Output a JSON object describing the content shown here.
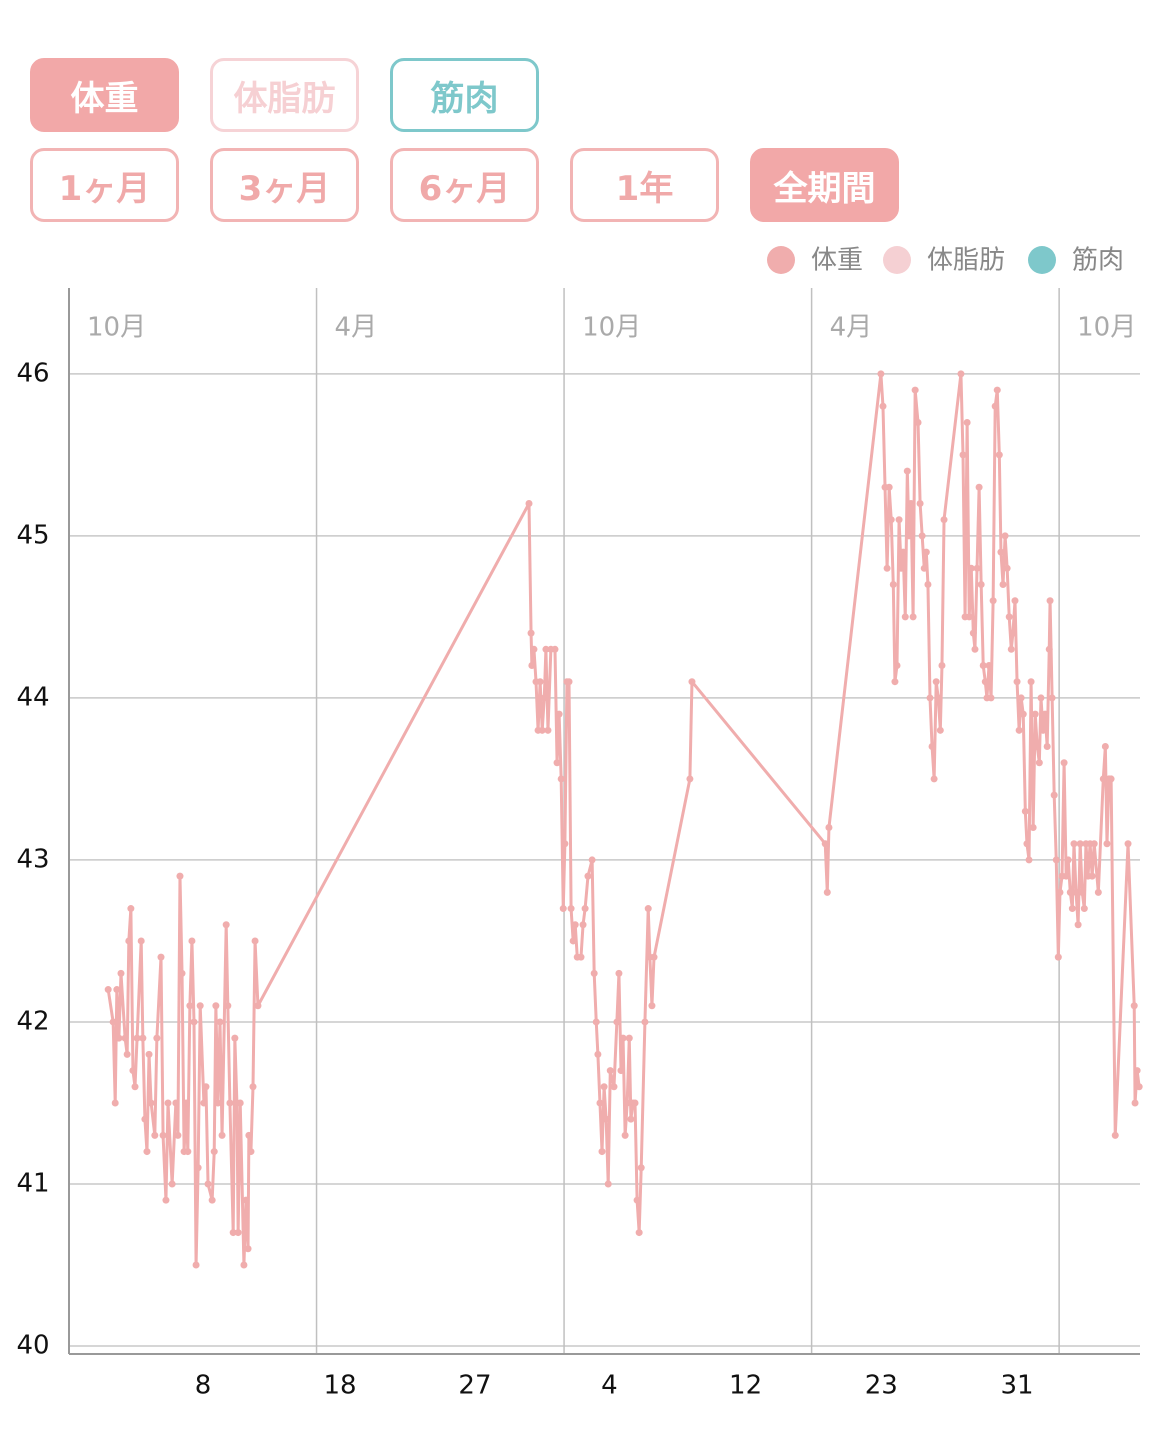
{
  "controls": {
    "metrics": [
      "体重",
      "体脂肪",
      "筋肉"
    ],
    "periods": [
      "1ヶ月",
      "3ヶ月",
      "6ヶ月",
      "1年",
      "全期間"
    ]
  },
  "chart_data": {
    "type": "line",
    "series": [
      {
        "name": "体重",
        "color": "#f0adad",
        "x": [
          0.95,
          1.07,
          1.12,
          1.16,
          1.21,
          1.26,
          1.36,
          1.41,
          1.45,
          1.5,
          1.55,
          1.6,
          1.65,
          1.75,
          1.79,
          1.84,
          1.89,
          1.94,
          1.99,
          2.08,
          2.13,
          2.23,
          2.28,
          2.35,
          2.4,
          2.5,
          2.59,
          2.64,
          2.69,
          2.74,
          2.79,
          2.84,
          2.88,
          2.93,
          2.98,
          3.03,
          3.08,
          3.13,
          3.18,
          3.27,
          3.32,
          3.37,
          3.47,
          3.52,
          3.56,
          3.61,
          3.66,
          3.71,
          3.81,
          3.85,
          3.9,
          3.98,
          4.02,
          4.07,
          4.1,
          4.15,
          4.24,
          4.29,
          4.34,
          4.36,
          4.41,
          4.46,
          4.51,
          4.58,
          11.15,
          11.2,
          11.22,
          11.27,
          11.32,
          11.37,
          11.42,
          11.47,
          11.52,
          11.56,
          11.61,
          11.68,
          11.78,
          11.83,
          11.88,
          11.93,
          11.98,
          12.02,
          12.07,
          12.12,
          12.17,
          12.22,
          12.27,
          12.32,
          12.41,
          12.46,
          12.51,
          12.58,
          12.68,
          12.73,
          12.78,
          12.82,
          12.87,
          12.92,
          12.97,
          13.02,
          13.07,
          13.12,
          13.21,
          13.28,
          13.33,
          13.38,
          13.43,
          13.48,
          13.53,
          13.58,
          13.62,
          13.67,
          13.72,
          13.77,
          13.82,
          13.87,
          13.96,
          14.04,
          14.08,
          14.13,
          14.18,
          15.05,
          15.1,
          18.33,
          18.38,
          18.42,
          19.68,
          19.73,
          19.78,
          19.83,
          19.88,
          19.93,
          19.98,
          20.02,
          20.07,
          20.12,
          20.17,
          20.22,
          20.27,
          20.32,
          20.36,
          20.41,
          20.46,
          20.51,
          20.58,
          20.63,
          20.68,
          20.73,
          20.78,
          20.82,
          20.87,
          20.92,
          20.97,
          21.02,
          21.07,
          21.12,
          21.16,
          21.21,
          21.62,
          21.67,
          21.72,
          21.77,
          21.82,
          21.87,
          21.92,
          21.96,
          22.01,
          22.06,
          22.11,
          22.16,
          22.21,
          22.25,
          22.3,
          22.35,
          22.4,
          22.45,
          22.5,
          22.55,
          22.59,
          22.64,
          22.69,
          22.74,
          22.79,
          22.84,
          22.88,
          22.93,
          22.98,
          23.03,
          23.08,
          23.13,
          23.18,
          23.22,
          23.27,
          23.32,
          23.37,
          23.42,
          23.47,
          23.52,
          23.56,
          23.61,
          23.66,
          23.71,
          23.76,
          23.78,
          23.83,
          23.88,
          23.93,
          23.98,
          24.02,
          24.07,
          24.12,
          24.17,
          24.22,
          24.27,
          24.32,
          24.36,
          24.41,
          24.46,
          24.51,
          24.56,
          24.61,
          24.65,
          24.7,
          24.75,
          24.8,
          24.85,
          24.95,
          25.07,
          25.12,
          25.16,
          25.21,
          25.26,
          25.36,
          25.67,
          25.82,
          25.84,
          25.89,
          25.94
        ],
        "values": [
          42.2,
          42.0,
          41.5,
          42.2,
          41.9,
          42.3,
          41.9,
          41.8,
          42.5,
          42.7,
          41.7,
          41.6,
          41.9,
          42.5,
          41.9,
          41.4,
          41.2,
          41.8,
          41.5,
          41.3,
          41.9,
          42.4,
          41.3,
          40.9,
          41.5,
          41.0,
          41.5,
          41.3,
          42.9,
          42.3,
          41.2,
          41.5,
          41.2,
          42.1,
          42.5,
          42.0,
          40.5,
          41.1,
          42.1,
          41.5,
          41.6,
          41.0,
          40.9,
          41.2,
          42.1,
          41.5,
          42.0,
          41.3,
          42.6,
          42.1,
          41.5,
          40.7,
          41.9,
          41.5,
          40.7,
          41.5,
          40.5,
          40.9,
          40.6,
          41.3,
          41.2,
          41.6,
          42.5,
          42.1,
          45.2,
          44.4,
          44.2,
          44.3,
          44.1,
          43.8,
          44.1,
          43.8,
          44.0,
          44.3,
          43.8,
          44.3,
          44.3,
          43.6,
          43.9,
          43.5,
          42.7,
          43.1,
          44.1,
          44.1,
          42.7,
          42.5,
          42.6,
          42.4,
          42.4,
          42.6,
          42.7,
          42.9,
          43.0,
          42.3,
          42.0,
          41.8,
          41.5,
          41.2,
          41.6,
          41.4,
          41.0,
          41.7,
          41.6,
          42.0,
          42.3,
          41.7,
          41.9,
          41.3,
          41.5,
          41.9,
          41.4,
          41.5,
          41.5,
          40.9,
          40.7,
          41.1,
          42.0,
          42.7,
          42.4,
          42.1,
          42.4,
          43.5,
          44.1,
          43.1,
          42.8,
          43.2,
          46.0,
          45.8,
          45.3,
          44.8,
          45.3,
          45.1,
          44.7,
          44.1,
          44.2,
          45.1,
          44.8,
          44.9,
          44.5,
          45.4,
          45.0,
          45.2,
          44.5,
          45.9,
          45.7,
          45.2,
          45.0,
          44.8,
          44.9,
          44.7,
          44.0,
          43.7,
          43.5,
          44.1,
          44.0,
          43.8,
          44.2,
          45.1,
          46.0,
          45.5,
          44.5,
          45.7,
          44.5,
          44.8,
          44.4,
          44.3,
          44.8,
          45.3,
          44.7,
          44.2,
          44.1,
          44.0,
          44.2,
          44.0,
          44.6,
          45.8,
          45.9,
          45.5,
          44.9,
          44.7,
          45.0,
          44.8,
          44.5,
          44.3,
          44.4,
          44.6,
          44.1,
          43.8,
          44.0,
          43.9,
          43.3,
          43.1,
          43.0,
          44.1,
          43.2,
          43.9,
          43.7,
          43.6,
          44.0,
          43.8,
          43.9,
          43.7,
          44.3,
          44.6,
          44.0,
          43.4,
          43.0,
          42.4,
          42.8,
          42.9,
          43.6,
          42.9,
          43.0,
          42.8,
          42.7,
          43.1,
          42.8,
          42.6,
          43.1,
          42.8,
          42.7,
          43.1,
          42.9,
          43.1,
          42.9,
          43.1,
          42.8,
          43.5,
          43.7,
          43.1,
          43.5,
          43.5,
          41.3,
          43.1,
          42.1,
          41.5,
          41.7,
          41.6
        ]
      }
    ],
    "legend_extra": [
      {
        "name": "体脂肪",
        "color": "#f5d0d3"
      },
      {
        "name": "筋肉",
        "color": "#7ec8cb"
      }
    ],
    "xlim": [
      0,
      25.96
    ],
    "xticks_top": [
      {
        "value": 0,
        "label": "10月"
      },
      {
        "value": 6,
        "label": "4月"
      },
      {
        "value": 12,
        "label": "10月"
      },
      {
        "value": 18,
        "label": "4月"
      },
      {
        "value": 24,
        "label": "10月"
      }
    ],
    "xticks": [
      {
        "value": 3.25,
        "label": "8"
      },
      {
        "value": 6.57,
        "label": "18"
      },
      {
        "value": 9.84,
        "label": "27"
      },
      {
        "value": 13.1,
        "label": "4"
      },
      {
        "value": 16.4,
        "label": "12"
      },
      {
        "value": 19.69,
        "label": "23"
      },
      {
        "value": 22.98,
        "label": "31"
      }
    ],
    "ylim": [
      40,
      46.53
    ],
    "yticks": [
      40,
      41,
      42,
      43,
      44,
      45,
      46
    ],
    "grid": true
  }
}
